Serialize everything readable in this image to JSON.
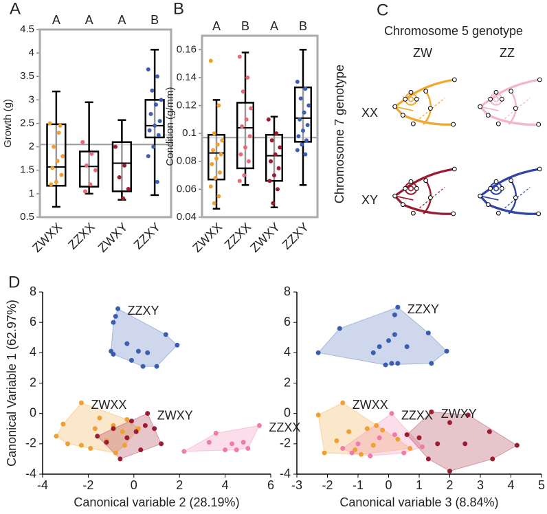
{
  "chart_data": [
    {
      "type": "box",
      "panel": "A",
      "y_label": "Growth (g)",
      "categories": [
        "ZWXX",
        "ZZXX",
        "ZWXY",
        "ZZXY"
      ],
      "colors": [
        "#f0a030",
        "#e8697a",
        "#9b1b30",
        "#3a5fb0"
      ],
      "group_letters": [
        "A",
        "A",
        "A",
        "B"
      ],
      "boxes": [
        {
          "min": 0.72,
          "q1": 1.17,
          "median": 1.57,
          "q3": 2.48,
          "max": 3.18
        },
        {
          "min": 1.0,
          "q1": 1.15,
          "median": 1.58,
          "q3": 1.9,
          "max": 2.95
        },
        {
          "min": 0.87,
          "q1": 1.05,
          "median": 1.65,
          "q3": 2.1,
          "max": 2.57
        },
        {
          "min": 0.97,
          "q1": 2.2,
          "median": 2.45,
          "q3": 3.0,
          "max": 4.07
        }
      ],
      "points": [
        [
          2.5,
          2.3,
          2.0,
          1.8,
          1.7,
          1.55,
          1.4,
          1.25,
          1.2,
          2.45
        ],
        [
          2.1,
          1.85,
          1.6,
          1.5,
          1.2,
          1.05
        ],
        [
          2.0,
          1.6,
          1.35,
          1.1,
          0.9
        ],
        [
          3.65,
          3.5,
          3.2,
          3.0,
          2.9,
          2.7,
          2.55,
          2.45,
          2.35,
          2.25,
          2.0,
          1.8,
          1.25
        ]
      ],
      "reference_line": 2.05,
      "ylim": [
        0.5,
        4.5
      ],
      "yticks": [
        0.5,
        1,
        1.5,
        2,
        2.5,
        3,
        3.5,
        4,
        4.5
      ]
    },
    {
      "type": "box",
      "panel": "B",
      "y_label": "Condition (g/mm)",
      "categories": [
        "ZWXX",
        "ZZXX",
        "ZWXY",
        "ZZXY"
      ],
      "colors": [
        "#f0a030",
        "#e8697a",
        "#9b1b30",
        "#3a5fb0"
      ],
      "group_letters": [
        "A",
        "B",
        "A",
        "B"
      ],
      "boxes": [
        {
          "min": 0.046,
          "q1": 0.067,
          "median": 0.086,
          "q3": 0.099,
          "max": 0.124
        },
        {
          "min": 0.063,
          "q1": 0.075,
          "median": 0.104,
          "q3": 0.122,
          "max": 0.158
        },
        {
          "min": 0.047,
          "q1": 0.066,
          "median": 0.084,
          "q3": 0.099,
          "max": 0.112
        },
        {
          "min": 0.063,
          "q1": 0.094,
          "median": 0.111,
          "q3": 0.133,
          "max": 0.16
        }
      ],
      "points": [
        [
          0.152,
          0.12,
          0.1,
          0.095,
          0.092,
          0.088,
          0.085,
          0.082,
          0.078,
          0.072,
          0.068,
          0.062,
          0.055,
          0.05
        ],
        [
          0.155,
          0.14,
          0.13,
          0.118,
          0.11,
          0.105,
          0.098,
          0.09,
          0.085,
          0.08,
          0.07,
          0.066
        ],
        [
          0.11,
          0.1,
          0.095,
          0.09,
          0.085,
          0.08,
          0.075,
          0.07,
          0.066,
          0.06,
          0.05
        ],
        [
          0.137,
          0.132,
          0.125,
          0.12,
          0.115,
          0.11,
          0.106,
          0.102,
          0.098,
          0.095,
          0.092,
          0.088,
          0.085
        ]
      ],
      "reference_line": 0.097,
      "ylim": [
        0.04,
        0.17
      ],
      "yticks": [
        0.04,
        0.06,
        0.08,
        0.1,
        0.12,
        0.14,
        0.16
      ]
    },
    {
      "type": "scatter",
      "panel": "D",
      "y_label": "Canonical Variable 1 (62.97%)",
      "x_label": "Canonical variable 2 (28.19%)",
      "xlim": [
        -4,
        6
      ],
      "xticks": [
        -4,
        -2,
        0,
        2,
        4,
        6
      ],
      "ylim": [
        -4,
        8
      ],
      "yticks": [
        -4,
        -2,
        0,
        2,
        4,
        6,
        8
      ],
      "series": [
        {
          "name": "ZZXY",
          "color": "#3a5fb0",
          "x": [
            -0.7,
            -0.8,
            -0.9,
            1.4,
            -0.3,
            1.9,
            -1.0,
            -0.9,
            0.2,
            0.6,
            -0.1,
            0.4,
            1.0
          ],
          "y": [
            6.9,
            6.4,
            6.0,
            5.2,
            4.6,
            4.5,
            4.1,
            3.9,
            4.1,
            4.0,
            3.5,
            3.1,
            3.1
          ]
        },
        {
          "name": "ZWXX",
          "color": "#f0a030",
          "x": [
            -2.3,
            -3.4,
            -3.1,
            -2.9,
            -2.3,
            -1.7,
            -1.5,
            -0.9,
            -1.2,
            -0.8,
            -0.5,
            -0.4,
            0.2,
            -1.9,
            -0.3
          ],
          "y": [
            0.7,
            -1.5,
            -0.7,
            -2.0,
            -2.1,
            -1.0,
            -0.3,
            -0.8,
            -1.8,
            -2.6,
            -1.2,
            -2.1,
            -1.0,
            -2.3,
            -0.4
          ]
        },
        {
          "name": "ZWXY",
          "color": "#9b1b30",
          "x": [
            0.6,
            0.9,
            1.2,
            -1.6,
            -1.2,
            -0.3,
            0.1,
            -0.6,
            -0.9,
            0.3,
            -0.1,
            0.5
          ],
          "y": [
            0.0,
            -1.0,
            -2.0,
            -1.5,
            -1.9,
            -1.6,
            -1.2,
            -3.0,
            -1.0,
            -2.4,
            -0.5,
            -0.8
          ]
        },
        {
          "name": "ZZXX",
          "color": "#f07aa8",
          "x": [
            2.2,
            3.3,
            3.6,
            4.0,
            4.5,
            4.3,
            5.5,
            4.8,
            5.0
          ],
          "y": [
            -2.5,
            -1.9,
            -1.3,
            -2.4,
            -2.4,
            -2.0,
            -0.8,
            -1.9,
            -2.3
          ]
        }
      ]
    },
    {
      "type": "scatter",
      "x_label": "Canonical variable 3 (8.84%)",
      "xlim": [
        -3,
        5
      ],
      "xticks": [
        -3,
        -2,
        -1,
        0,
        1,
        2,
        3,
        4,
        5
      ],
      "ylim": [
        -4,
        8
      ],
      "yticks": [
        -4,
        -2,
        0,
        2,
        4,
        6,
        8
      ],
      "series": [
        {
          "name": "ZZXY",
          "color": "#3a5fb0",
          "x": [
            -2.3,
            -1.6,
            -0.5,
            0.2,
            0.3,
            -0.3,
            0.0,
            -0.1,
            0.1,
            0.3,
            0.6,
            1.3,
            1.4,
            1.9,
            0.2
          ],
          "y": [
            4.0,
            5.6,
            4.0,
            6.5,
            7.0,
            4.4,
            4.8,
            3.2,
            3.3,
            3.3,
            4.4,
            5.3,
            3.3,
            4.1,
            5.2
          ]
        },
        {
          "name": "ZWXX",
          "color": "#f0a030",
          "x": [
            -2.3,
            -1.5,
            -2.1,
            -1.7,
            -1.3,
            -1.1,
            -0.7,
            -0.5,
            -0.2,
            0.3,
            0.7,
            -0.9,
            -0.4
          ],
          "y": [
            -0.1,
            0.7,
            -2.6,
            -1.8,
            -1.2,
            -2.4,
            -1.0,
            -2.1,
            -1.1,
            -1.7,
            -2.3,
            -2.7,
            -0.8
          ]
        },
        {
          "name": "ZZXX",
          "color": "#f07aa8",
          "x": [
            0.1,
            -1.0,
            -1.5,
            -0.3,
            -0.6,
            0.5,
            1.1,
            0.2,
            -1.2
          ],
          "y": [
            0.0,
            -2.0,
            -2.3,
            -1.6,
            -2.8,
            -2.6,
            -2.2,
            -1.4,
            -2.6
          ]
        },
        {
          "name": "ZWXY",
          "color": "#9b1b30",
          "x": [
            1.4,
            2.0,
            2.6,
            3.3,
            4.2,
            3.4,
            2.0,
            1.6,
            1.0,
            0.6,
            2.5,
            1.3
          ],
          "y": [
            0.1,
            -0.6,
            -0.1,
            -1.2,
            -2.1,
            -3.0,
            -3.8,
            -2.0,
            -1.6,
            -1.4,
            -2.0,
            -3.0
          ]
        }
      ]
    }
  ],
  "panel_c": {
    "panel": "C",
    "title": "Chromosome 5 genotype",
    "columns": [
      "ZW",
      "ZZ"
    ],
    "rows": [
      "XX",
      "XY"
    ],
    "row_title": "Chromosome 7 genotype"
  }
}
